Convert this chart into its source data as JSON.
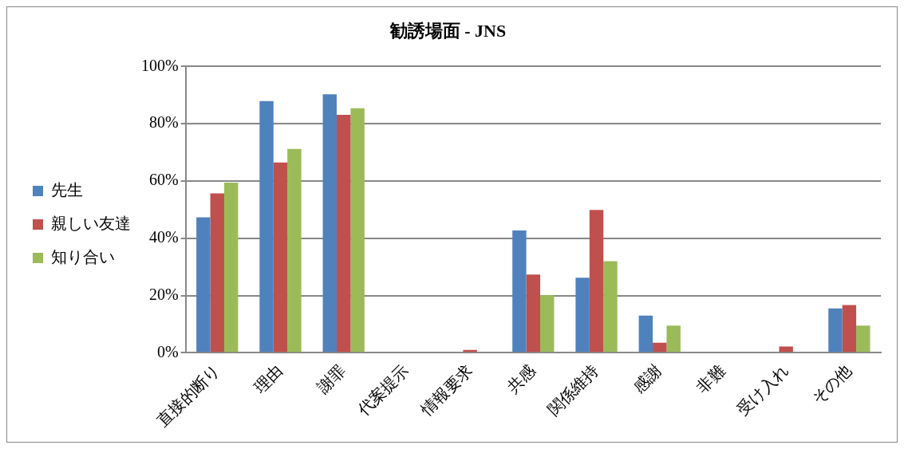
{
  "chart_data": {
    "type": "bar",
    "title": "勧誘場面 - JNS",
    "categories": [
      "直接的断り",
      "理由",
      "謝罪",
      "代案提示",
      "情報要求",
      "共感",
      "関係維持",
      "感謝",
      "非難",
      "受け入れ",
      "その他"
    ],
    "series": [
      {
        "name": "先生",
        "color": "#4f81bd",
        "values": [
          47.3,
          87.9,
          90.3,
          0,
          0,
          42.7,
          26.2,
          13.0,
          0,
          0,
          15.5
        ]
      },
      {
        "name": "親しい友達",
        "color": "#c0504d",
        "values": [
          55.7,
          66.5,
          83.1,
          0,
          1.0,
          27.3,
          49.9,
          3.5,
          0,
          2.2,
          16.7
        ]
      },
      {
        "name": "知り合い",
        "color": "#9bbb59",
        "values": [
          59.4,
          71.2,
          85.4,
          0,
          0,
          20.1,
          32.0,
          9.5,
          0,
          0,
          9.5
        ]
      }
    ],
    "ylim": [
      0,
      100
    ],
    "yticks": [
      {
        "value": 0,
        "label": "0%"
      },
      {
        "value": 20,
        "label": "20%"
      },
      {
        "value": 40,
        "label": "40%"
      },
      {
        "value": 60,
        "label": "60%"
      },
      {
        "value": 80,
        "label": "80%"
      },
      {
        "value": 100,
        "label": "100%"
      }
    ],
    "grid": "y",
    "legend": "left"
  }
}
